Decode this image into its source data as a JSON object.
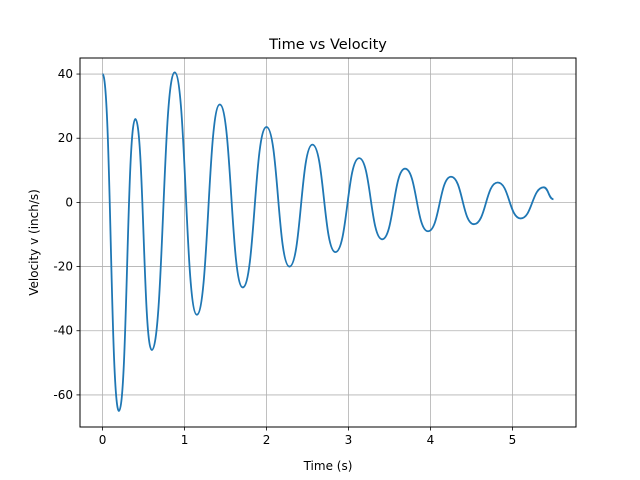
{
  "chart_data": {
    "type": "line",
    "title": "Time vs Velocity",
    "xlabel": "Time (s)",
    "ylabel": "Velocity v (inch/s)",
    "xlim": [
      -0.275,
      5.775
    ],
    "ylim": [
      -70,
      45
    ],
    "xticks": [
      0,
      1,
      2,
      3,
      4,
      5
    ],
    "xtick_labels": [
      "0",
      "1",
      "2",
      "3",
      "4",
      "5"
    ],
    "yticks": [
      -60,
      -40,
      -20,
      0,
      20,
      40
    ],
    "ytick_labels": [
      "-60",
      "-40",
      "-20",
      "0",
      "20",
      "40"
    ],
    "grid": true,
    "series": [
      {
        "color": "#1f77b4",
        "x": [
          0.0,
          0.2,
          0.4,
          0.6,
          0.88,
          1.15,
          1.43,
          1.71,
          2.0,
          2.28,
          2.56,
          2.84,
          3.13,
          3.41,
          3.69,
          3.97,
          4.25,
          4.53,
          4.82,
          5.1,
          5.38,
          5.5
        ],
        "y": [
          40.0,
          -65.0,
          26.0,
          -46.0,
          40.5,
          -35.0,
          30.5,
          -26.5,
          23.5,
          -20.0,
          18.0,
          -15.5,
          13.8,
          -11.5,
          10.5,
          -9.0,
          8.0,
          -6.8,
          6.2,
          -5.0,
          4.7,
          1.0
        ]
      }
    ]
  }
}
